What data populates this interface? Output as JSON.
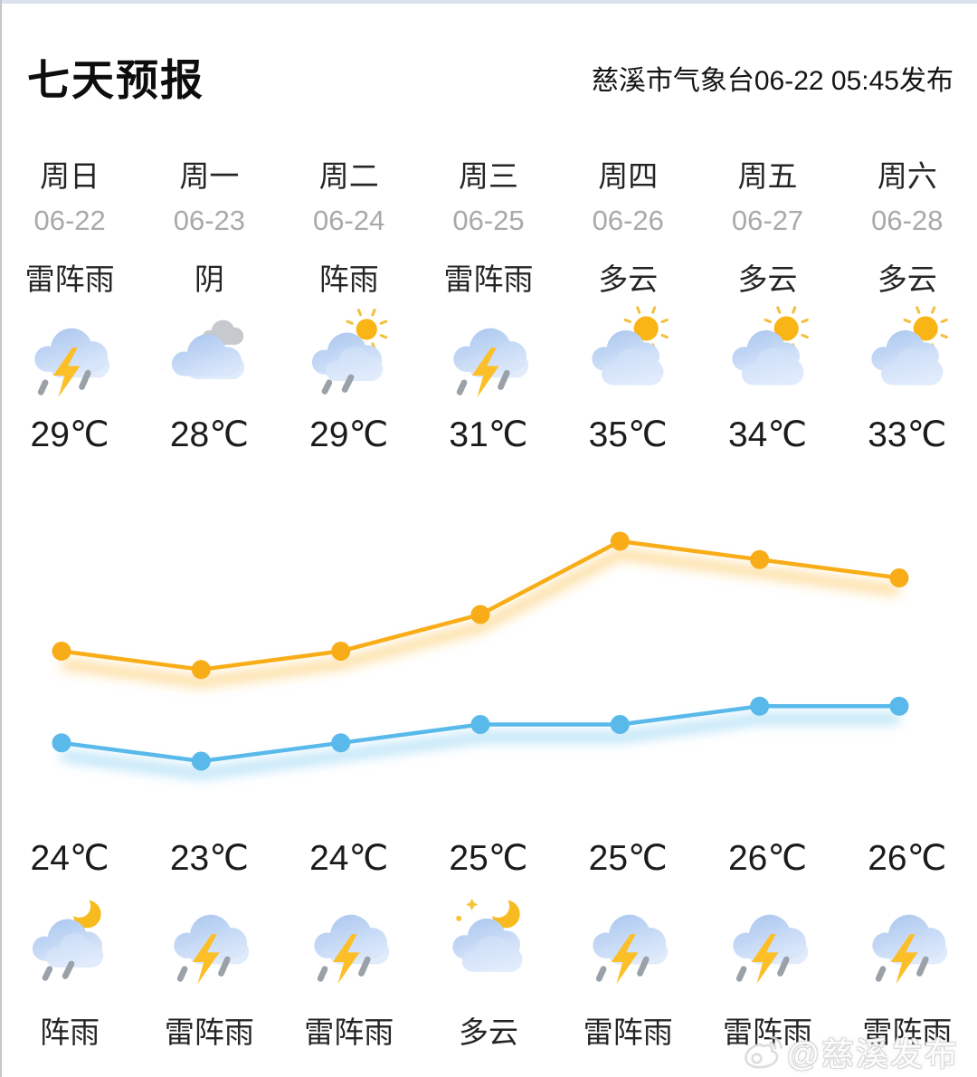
{
  "header": {
    "title": "七天预报",
    "source": "慈溪市气象台06-22 05:45发布"
  },
  "days": [
    {
      "weekday": "周日",
      "date": "06-22",
      "day_condition": "雷阵雨",
      "day_icon": "thunderstorm",
      "high": "29℃",
      "low": "24℃",
      "night_icon": "shower-night",
      "night_condition": "阵雨"
    },
    {
      "weekday": "周一",
      "date": "06-23",
      "day_condition": "阴",
      "day_icon": "overcast",
      "high": "28℃",
      "low": "23℃",
      "night_icon": "thunderstorm",
      "night_condition": "雷阵雨"
    },
    {
      "weekday": "周二",
      "date": "06-24",
      "day_condition": "阵雨",
      "day_icon": "shower-day",
      "high": "29℃",
      "low": "24℃",
      "night_icon": "thunderstorm",
      "night_condition": "雷阵雨"
    },
    {
      "weekday": "周三",
      "date": "06-25",
      "day_condition": "雷阵雨",
      "day_icon": "thunderstorm",
      "high": "31℃",
      "low": "25℃",
      "night_icon": "cloudy-night",
      "night_condition": "多云"
    },
    {
      "weekday": "周四",
      "date": "06-26",
      "day_condition": "多云",
      "day_icon": "partly-day",
      "high": "35℃",
      "low": "25℃",
      "night_icon": "thunderstorm",
      "night_condition": "雷阵雨"
    },
    {
      "weekday": "周五",
      "date": "06-27",
      "day_condition": "多云",
      "day_icon": "partly-day",
      "high": "34℃",
      "low": "26℃",
      "night_icon": "thunderstorm",
      "night_condition": "雷阵雨"
    },
    {
      "weekday": "周六",
      "date": "06-28",
      "day_condition": "多云",
      "day_icon": "partly-day",
      "high": "33℃",
      "low": "26℃",
      "night_icon": "thunderstorm",
      "night_condition": "雷阵雨"
    }
  ],
  "chart_data": {
    "type": "line",
    "categories": [
      "周日",
      "周一",
      "周二",
      "周三",
      "周四",
      "周五",
      "周六"
    ],
    "series": [
      {
        "name": "high",
        "color": "#f8ad18",
        "glow": "rgba(249,177,35,0.40)",
        "values": [
          29,
          28,
          29,
          31,
          35,
          34,
          33
        ]
      },
      {
        "name": "low",
        "color": "#58b9ea",
        "glow": "rgba(95,190,238,0.40)",
        "values": [
          24,
          23,
          24,
          25,
          25,
          26,
          26
        ]
      }
    ],
    "unit": "℃",
    "grid": false,
    "legend": false
  },
  "watermark": {
    "icon": "weibo-icon",
    "text": "@慈溪发布"
  },
  "colors": {
    "accent_high": "#f8ad18",
    "accent_low": "#58b9ea",
    "date_gray": "#a9a9a9",
    "cloud_blue_top": "#a6c4ee",
    "cloud_blue_bottom": "#d9e6fa",
    "sun_yellow": "#f9b415",
    "bolt_yellow": "#fcbf27",
    "rain_gray": "#9ba1a9",
    "top_strip": "#d9e1ed"
  }
}
